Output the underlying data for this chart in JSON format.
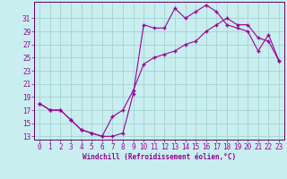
{
  "xlabel": "Windchill (Refroidissement éolien,°C)",
  "bg_color": "#c8eef0",
  "grid_color": "#9ecfcc",
  "line_color": "#990099",
  "spine_color": "#660066",
  "xlim": [
    -0.5,
    23.5
  ],
  "ylim": [
    12.5,
    33.5
  ],
  "yticks": [
    13,
    15,
    17,
    19,
    21,
    23,
    25,
    27,
    29,
    31
  ],
  "xticks": [
    0,
    1,
    2,
    3,
    4,
    5,
    6,
    7,
    8,
    9,
    10,
    11,
    12,
    13,
    14,
    15,
    16,
    17,
    18,
    19,
    20,
    21,
    22,
    23
  ],
  "line1_x": [
    0,
    1,
    2,
    3,
    4,
    5,
    6,
    7,
    8,
    9,
    10,
    11,
    12,
    13,
    14,
    15,
    16,
    17,
    18,
    19,
    20,
    21,
    22,
    23
  ],
  "line1_y": [
    18,
    17,
    17,
    15.5,
    14,
    13.5,
    13,
    13,
    13.5,
    19.5,
    30,
    29.5,
    29.5,
    32.5,
    31,
    32,
    33,
    32,
    30,
    29.5,
    29,
    26,
    28.5,
    24.5
  ],
  "line2_x": [
    0,
    1,
    2,
    3,
    4,
    5,
    6,
    7,
    8,
    9,
    10,
    11,
    12,
    13,
    14,
    15,
    16,
    17,
    18,
    19,
    20,
    21,
    22,
    23
  ],
  "line2_y": [
    18,
    17,
    17,
    15.5,
    14,
    13.5,
    13,
    16,
    17,
    20,
    24,
    25,
    25.5,
    26,
    27,
    27.5,
    29,
    30,
    31,
    30,
    30,
    28,
    27.5,
    24.5
  ],
  "marker": "+",
  "markersize": 3.5,
  "linewidth": 0.8,
  "tick_fontsize": 5.5,
  "xlabel_fontsize": 5.5
}
